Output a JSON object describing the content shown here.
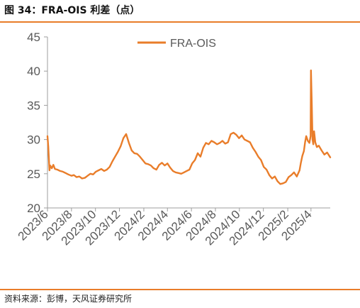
{
  "figure": {
    "title": "图 34：FRA-OIS 利差（点）",
    "source": "资料来源：彭博，天风证券研究所"
  },
  "colors": {
    "accent": "#e97d2a",
    "series": "#e97d2a",
    "axis": "#9e9e9e",
    "text": "#595959"
  },
  "chart_data": {
    "type": "line",
    "title": "",
    "xlabel": "",
    "ylabel": "",
    "ylim": [
      20,
      45
    ],
    "yticks": [
      "20",
      "25",
      "30",
      "35",
      "40",
      "45"
    ],
    "xlim": [
      "2023-06-01",
      "2025-05-20"
    ],
    "xticks": [
      "2023/6",
      "2023/8",
      "2023/10",
      "2023/12",
      "2024/2",
      "2024/4",
      "2024/6",
      "2024/8",
      "2024/10",
      "2024/12",
      "2025/2",
      "2025/4"
    ],
    "grid": false,
    "legend": {
      "position": "top",
      "entries": [
        "FRA-OIS"
      ]
    },
    "series": [
      {
        "name": "FRA-OIS",
        "x": [
          "2023-06-01",
          "2023-06-03",
          "2023-06-06",
          "2023-06-08",
          "2023-06-12",
          "2023-06-16",
          "2023-06-20",
          "2023-06-26",
          "2023-07-03",
          "2023-07-10",
          "2023-07-17",
          "2023-07-24",
          "2023-08-01",
          "2023-08-07",
          "2023-08-14",
          "2023-08-21",
          "2023-08-28",
          "2023-09-04",
          "2023-09-11",
          "2023-09-18",
          "2023-09-25",
          "2023-10-02",
          "2023-10-09",
          "2023-10-16",
          "2023-10-23",
          "2023-10-30",
          "2023-11-06",
          "2023-11-13",
          "2023-11-20",
          "2023-11-27",
          "2023-12-04",
          "2023-12-11",
          "2023-12-18",
          "2023-12-25",
          "2024-01-01",
          "2024-01-08",
          "2024-01-15",
          "2024-01-22",
          "2024-01-29",
          "2024-02-05",
          "2024-02-12",
          "2024-02-19",
          "2024-02-26",
          "2024-03-04",
          "2024-03-11",
          "2024-03-18",
          "2024-03-25",
          "2024-04-01",
          "2024-04-08",
          "2024-04-15",
          "2024-04-22",
          "2024-04-29",
          "2024-05-06",
          "2024-05-13",
          "2024-05-20",
          "2024-05-27",
          "2024-06-03",
          "2024-06-10",
          "2024-06-17",
          "2024-06-24",
          "2024-07-01",
          "2024-07-08",
          "2024-07-15",
          "2024-07-22",
          "2024-07-29",
          "2024-08-05",
          "2024-08-12",
          "2024-08-19",
          "2024-08-26",
          "2024-09-02",
          "2024-09-09",
          "2024-09-16",
          "2024-09-23",
          "2024-09-30",
          "2024-10-07",
          "2024-10-14",
          "2024-10-21",
          "2024-10-28",
          "2024-11-04",
          "2024-11-11",
          "2024-11-18",
          "2024-11-25",
          "2024-12-02",
          "2024-12-09",
          "2024-12-16",
          "2024-12-23",
          "2024-12-30",
          "2025-01-06",
          "2025-01-13",
          "2025-01-20",
          "2025-01-27",
          "2025-02-03",
          "2025-02-10",
          "2025-02-17",
          "2025-02-24",
          "2025-03-03",
          "2025-03-06",
          "2025-03-10",
          "2025-03-14",
          "2025-03-17",
          "2025-03-20",
          "2025-03-24",
          "2025-03-28",
          "2025-03-31",
          "2025-04-01",
          "2025-04-03",
          "2025-04-05",
          "2025-04-07",
          "2025-04-09",
          "2025-04-12",
          "2025-04-16",
          "2025-04-21",
          "2025-04-28",
          "2025-05-05",
          "2025-05-12",
          "2025-05-20"
        ],
        "values": [
          30.5,
          29.0,
          25.5,
          26.2,
          25.8,
          26.3,
          25.7,
          25.6,
          25.4,
          25.3,
          25.1,
          24.9,
          24.7,
          24.8,
          24.5,
          24.6,
          24.3,
          24.4,
          24.7,
          25.0,
          24.9,
          25.3,
          25.5,
          25.7,
          25.4,
          25.6,
          26.0,
          26.8,
          27.5,
          28.2,
          29.0,
          30.2,
          30.8,
          29.5,
          28.4,
          28.0,
          27.9,
          27.5,
          27.0,
          26.5,
          26.4,
          26.2,
          25.8,
          25.6,
          26.3,
          26.6,
          26.2,
          26.5,
          25.9,
          25.4,
          25.2,
          25.1,
          25.0,
          25.2,
          25.4,
          25.6,
          26.5,
          27.0,
          28.0,
          27.5,
          28.8,
          29.5,
          29.3,
          29.8,
          29.6,
          29.3,
          29.5,
          29.8,
          29.4,
          29.6,
          30.8,
          31.0,
          30.7,
          30.2,
          30.6,
          30.0,
          29.8,
          29.6,
          28.8,
          28.2,
          27.5,
          27.0,
          26.0,
          25.6,
          24.8,
          24.3,
          24.6,
          23.9,
          23.5,
          23.6,
          23.8,
          24.5,
          24.8,
          25.2,
          24.6,
          25.5,
          26.5,
          27.6,
          28.3,
          29.6,
          30.5,
          29.8,
          29.5,
          30.5,
          40.1,
          35.5,
          30.0,
          29.3,
          31.2,
          29.6,
          28.9,
          29.1,
          28.4,
          27.8,
          28.1,
          27.4
        ]
      }
    ]
  }
}
